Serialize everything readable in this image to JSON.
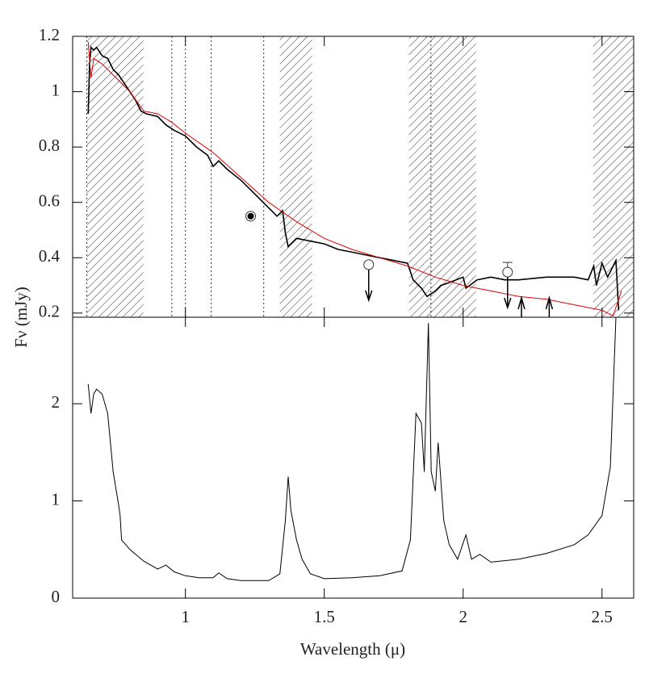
{
  "chart_data": [
    {
      "type": "line",
      "ylabel": "Fν (mJy)",
      "xlim": [
        0.594,
        2.614
      ],
      "ylim": [
        0.185,
        1.2
      ],
      "yticks": [
        0.2,
        0.4,
        0.6,
        0.8,
        1,
        1.2
      ],
      "shaded_regions": [
        [
          0.645,
          0.849
        ],
        [
          1.34,
          1.456
        ],
        [
          1.805,
          2.046
        ],
        [
          2.468,
          2.614
        ]
      ],
      "vlines": [
        0.645,
        0.951,
        1.0,
        1.093,
        1.282,
        1.884
      ],
      "series": [
        {
          "color": "#000000",
          "x": [
            0.65,
            0.655,
            0.66,
            0.67,
            0.68,
            0.7,
            0.72,
            0.74,
            0.76,
            0.78,
            0.8,
            0.82,
            0.84,
            0.86,
            0.9,
            0.93,
            0.96,
            1.0,
            1.04,
            1.08,
            1.1,
            1.12,
            1.15,
            1.2,
            1.25,
            1.28,
            1.3,
            1.32,
            1.33,
            1.35,
            1.36,
            1.37,
            1.4,
            1.45,
            1.5,
            1.55,
            1.6,
            1.65,
            1.7,
            1.75,
            1.8,
            1.82,
            1.85,
            1.87,
            1.9,
            1.92,
            1.95,
            2.0,
            2.01,
            2.05,
            2.1,
            2.15,
            2.2,
            2.3,
            2.4,
            2.45,
            2.47,
            2.48,
            2.5,
            2.52,
            2.55,
            2.56
          ],
          "values": [
            0.92,
            1.1,
            1.16,
            1.15,
            1.16,
            1.13,
            1.12,
            1.08,
            1.06,
            1.03,
            1.0,
            0.97,
            0.93,
            0.92,
            0.91,
            0.88,
            0.86,
            0.84,
            0.8,
            0.77,
            0.73,
            0.75,
            0.72,
            0.68,
            0.63,
            0.6,
            0.58,
            0.56,
            0.55,
            0.57,
            0.49,
            0.44,
            0.47,
            0.46,
            0.45,
            0.43,
            0.42,
            0.41,
            0.4,
            0.39,
            0.38,
            0.32,
            0.29,
            0.26,
            0.28,
            0.3,
            0.31,
            0.33,
            0.29,
            0.32,
            0.33,
            0.32,
            0.32,
            0.33,
            0.33,
            0.32,
            0.37,
            0.3,
            0.38,
            0.33,
            0.39,
            0.21
          ]
        },
        {
          "color": "#e00000",
          "x": [
            0.65,
            0.66,
            0.67,
            0.7,
            0.75,
            0.8,
            0.85,
            0.9,
            0.95,
            1.0,
            1.1,
            1.2,
            1.3,
            1.4,
            1.5,
            1.6,
            1.7,
            1.8,
            1.9,
            2.0,
            2.1,
            2.2,
            2.3,
            2.4,
            2.5,
            2.54,
            2.57
          ],
          "values": [
            1.18,
            1.05,
            1.12,
            1.1,
            1.05,
            1.0,
            0.93,
            0.92,
            0.89,
            0.85,
            0.78,
            0.69,
            0.6,
            0.53,
            0.47,
            0.43,
            0.4,
            0.37,
            0.33,
            0.3,
            0.28,
            0.26,
            0.25,
            0.23,
            0.21,
            0.19,
            0.28
          ]
        }
      ],
      "points": [
        {
          "x": 1.235,
          "y": 0.55,
          "marker": "filled"
        },
        {
          "x": 1.66,
          "y": 0.375,
          "marker": "open",
          "upper_limit": true
        },
        {
          "x": 2.16,
          "y": 0.348,
          "marker": "open",
          "upper_limit": true,
          "err": 0.035
        }
      ],
      "up_arrows": [
        2.21,
        2.31
      ]
    },
    {
      "type": "line",
      "xlabel": "Wavelength (μ)",
      "xlim": [
        0.594,
        2.614
      ],
      "ylim": [
        0,
        2.89
      ],
      "xticks": [
        1,
        1.5,
        2,
        2.5
      ],
      "yticks": [
        0,
        1,
        2
      ],
      "series": [
        {
          "color": "#000000",
          "x": [
            0.65,
            0.66,
            0.67,
            0.68,
            0.7,
            0.72,
            0.74,
            0.76,
            0.765,
            0.77,
            0.8,
            0.85,
            0.9,
            0.93,
            0.96,
            1.0,
            1.05,
            1.1,
            1.12,
            1.15,
            1.2,
            1.3,
            1.34,
            1.36,
            1.37,
            1.38,
            1.4,
            1.42,
            1.45,
            1.5,
            1.6,
            1.7,
            1.78,
            1.81,
            1.83,
            1.85,
            1.86,
            1.875,
            1.885,
            1.9,
            1.91,
            1.93,
            1.95,
            1.98,
            2.01,
            2.03,
            2.06,
            2.1,
            2.2,
            2.3,
            2.4,
            2.45,
            2.5,
            2.53,
            2.55
          ],
          "values": [
            2.2,
            1.9,
            2.1,
            2.15,
            2.1,
            1.9,
            1.3,
            0.95,
            0.85,
            0.6,
            0.5,
            0.38,
            0.3,
            0.34,
            0.27,
            0.23,
            0.21,
            0.21,
            0.26,
            0.2,
            0.18,
            0.18,
            0.25,
            0.8,
            1.25,
            0.9,
            0.6,
            0.4,
            0.25,
            0.2,
            0.21,
            0.23,
            0.28,
            0.6,
            1.9,
            1.8,
            1.3,
            2.83,
            1.3,
            1.1,
            1.6,
            0.8,
            0.55,
            0.4,
            0.65,
            0.4,
            0.45,
            0.37,
            0.4,
            0.46,
            0.55,
            0.65,
            0.85,
            1.35,
            2.89
          ]
        }
      ]
    }
  ]
}
